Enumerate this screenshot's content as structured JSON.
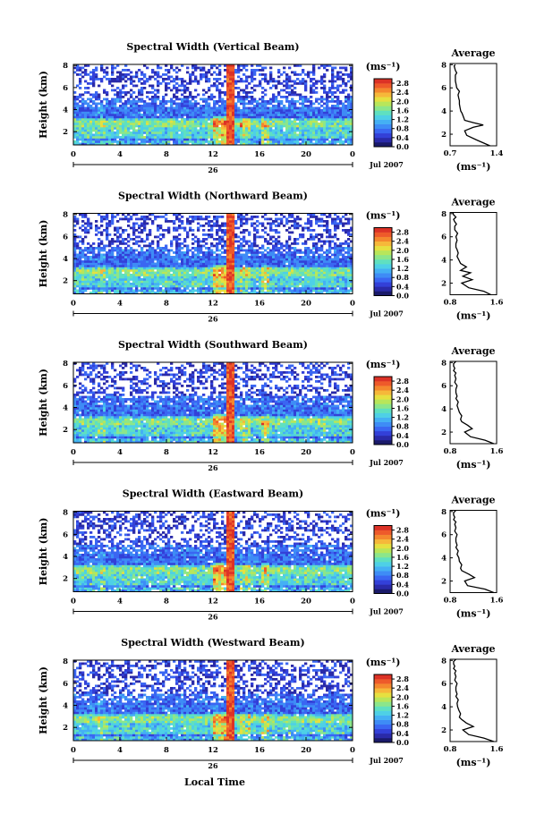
{
  "chart_data": {
    "type": "heatmap",
    "x_ticks": [
      "0",
      "4",
      "8",
      "12",
      "16",
      "20",
      "0"
    ],
    "x_range_hours": [
      0,
      24
    ],
    "day_label": "26",
    "date_label": "Jul 2007",
    "ylabel": "Height (km)",
    "y_ticks": [
      "2",
      "4",
      "6",
      "8"
    ],
    "y_range_km": [
      0.8,
      8.1
    ],
    "xlabel": "Local Time",
    "colorbar": {
      "unit_label": "(ms⁻¹)",
      "ticks": [
        "0.0",
        "0.4",
        "0.8",
        "1.2",
        "1.6",
        "2.0",
        "2.4",
        "2.8"
      ],
      "range": [
        0,
        3.0
      ],
      "colors": [
        "#1a1a6a",
        "#2a2aa8",
        "#3340d8",
        "#3a66f2",
        "#3e8cf6",
        "#44b0f4",
        "#4ed0e6",
        "#5fe0c0",
        "#8ce68a",
        "#b8e65a",
        "#e6e040",
        "#f6b83a",
        "#f4882e",
        "#ee5a2a",
        "#dc3226"
      ]
    },
    "panels": [
      {
        "title": "Spectral Width (Vertical Beam)",
        "beam": "vertical",
        "avg_title": "Average",
        "avg_xticks": [
          "0.7",
          "1.4"
        ],
        "avg_xrange": [
          0.7,
          1.4
        ],
        "avg_xlabel": "(ms⁻¹)",
        "profile_x": [
          1.3,
          1.22,
          1.1,
          0.95,
          0.92,
          1.05,
          1.2,
          1.05,
          0.92,
          0.9,
          0.88,
          0.86,
          0.85,
          0.84,
          0.84,
          0.83,
          0.82,
          0.84,
          0.8,
          0.79,
          0.78,
          0.78,
          0.78,
          0.8,
          0.78,
          0.77,
          0.76,
          0.78
        ],
        "profile_y": [
          1.0,
          1.2,
          1.5,
          1.9,
          2.3,
          2.6,
          2.8,
          3.0,
          3.2,
          3.5,
          3.8,
          4.0,
          4.3,
          4.6,
          4.9,
          5.1,
          5.4,
          5.7,
          6.0,
          6.3,
          6.6,
          6.9,
          7.1,
          7.3,
          7.5,
          7.7,
          7.9,
          8.0
        ]
      },
      {
        "title": "Spectral Width (Northward Beam)",
        "beam": "northward",
        "avg_title": "Average",
        "avg_xticks": [
          "0.8",
          "1.6"
        ],
        "avg_xrange": [
          0.8,
          1.6
        ],
        "avg_xlabel": "(ms⁻¹)",
        "profile_x": [
          1.5,
          1.38,
          1.12,
          1.0,
          1.18,
          1.02,
          1.15,
          0.98,
          1.08,
          0.98,
          0.95,
          0.92,
          0.94,
          0.92,
          0.9,
          0.9,
          0.92,
          0.9,
          0.93,
          0.88,
          0.88,
          0.91,
          0.88,
          0.86,
          0.9,
          0.86,
          0.85,
          0.86
        ],
        "profile_y": [
          1.0,
          1.3,
          1.6,
          2.0,
          2.3,
          2.6,
          2.9,
          3.1,
          3.4,
          3.7,
          4.0,
          4.3,
          4.6,
          4.9,
          5.1,
          5.4,
          5.7,
          6.0,
          6.3,
          6.6,
          6.9,
          7.1,
          7.3,
          7.5,
          7.7,
          7.9,
          8.0,
          8.1
        ]
      },
      {
        "title": "Spectral Width (Southward Beam)",
        "beam": "southward",
        "avg_title": "Average",
        "avg_xticks": [
          "0.8",
          "1.6"
        ],
        "avg_xrange": [
          0.8,
          1.6
        ],
        "avg_xlabel": "(ms⁻¹)",
        "profile_x": [
          1.55,
          1.4,
          1.15,
          1.05,
          1.18,
          1.1,
          1.0,
          0.98,
          1.0,
          0.96,
          0.94,
          0.92,
          0.94,
          0.9,
          0.92,
          0.9,
          0.9,
          0.92,
          0.88,
          0.9,
          0.88,
          0.9,
          0.86,
          0.88,
          0.86,
          0.86,
          0.88,
          0.9
        ],
        "profile_y": [
          1.0,
          1.3,
          1.6,
          2.0,
          2.3,
          2.6,
          2.9,
          3.1,
          3.4,
          3.7,
          4.0,
          4.3,
          4.6,
          4.9,
          5.1,
          5.4,
          5.7,
          6.0,
          6.3,
          6.6,
          6.9,
          7.1,
          7.3,
          7.5,
          7.7,
          7.9,
          8.0,
          8.1
        ]
      },
      {
        "title": "Spectral Width (Eastward Beam)",
        "beam": "eastward",
        "avg_title": "Average",
        "avg_xticks": [
          "0.8",
          "1.6"
        ],
        "avg_xrange": [
          0.8,
          1.6
        ],
        "avg_xlabel": "(ms⁻¹)",
        "profile_x": [
          1.55,
          1.4,
          1.1,
          1.05,
          1.22,
          1.12,
          1.0,
          0.98,
          1.0,
          0.96,
          0.95,
          0.92,
          0.94,
          0.9,
          0.92,
          0.9,
          0.9,
          0.92,
          0.88,
          0.9,
          0.88,
          0.9,
          0.86,
          0.88,
          0.86,
          0.86,
          0.88,
          0.9
        ],
        "profile_y": [
          1.0,
          1.3,
          1.6,
          2.0,
          2.3,
          2.6,
          2.9,
          3.1,
          3.4,
          3.7,
          4.0,
          4.3,
          4.6,
          4.9,
          5.1,
          5.4,
          5.7,
          6.0,
          6.3,
          6.6,
          6.9,
          7.1,
          7.3,
          7.5,
          7.7,
          7.9,
          8.0,
          8.1
        ]
      },
      {
        "title": "Spectral Width (Westward Beam)",
        "beam": "westward",
        "avg_title": "Average",
        "avg_xticks": [
          "0.8",
          "1.6"
        ],
        "avg_xrange": [
          0.8,
          1.6
        ],
        "avg_xlabel": "(ms⁻¹)",
        "profile_x": [
          1.55,
          1.38,
          1.12,
          1.02,
          1.2,
          1.08,
          1.0,
          0.96,
          0.98,
          0.95,
          0.93,
          0.92,
          0.94,
          0.9,
          0.92,
          0.9,
          0.9,
          0.92,
          0.88,
          0.9,
          0.88,
          0.9,
          0.86,
          0.88,
          0.86,
          0.86,
          0.88,
          0.9
        ],
        "profile_y": [
          1.0,
          1.3,
          1.6,
          2.0,
          2.3,
          2.6,
          2.9,
          3.1,
          3.4,
          3.7,
          4.0,
          4.3,
          4.6,
          4.9,
          5.1,
          5.4,
          5.7,
          6.0,
          6.3,
          6.6,
          6.9,
          7.1,
          7.3,
          7.5,
          7.7,
          7.9,
          8.0,
          8.1
        ]
      }
    ]
  }
}
